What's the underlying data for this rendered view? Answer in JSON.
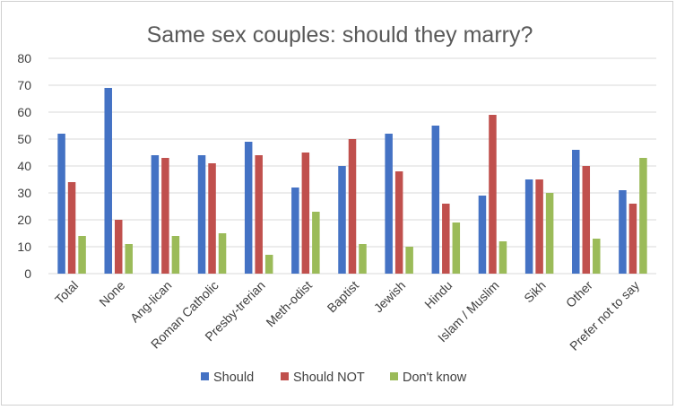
{
  "chart_data": {
    "type": "bar",
    "title": "Same sex couples: should they marry?",
    "xlabel": "",
    "ylabel": "",
    "ylim": [
      0,
      80
    ],
    "yticks": [
      0,
      10,
      20,
      30,
      40,
      50,
      60,
      70,
      80
    ],
    "grid": true,
    "legend_position": "bottom",
    "categories": [
      "Total",
      "None",
      "Ang-lican",
      "Roman Catholic",
      "Presby-trerian",
      "Meth-odist",
      "Baptist",
      "Jewish",
      "Hindu",
      "Islam / Muslim",
      "Sikh",
      "Other",
      "Prefer not to say"
    ],
    "series": [
      {
        "name": "Should",
        "color": "#4472c4",
        "values": [
          52,
          69,
          44,
          44,
          49,
          32,
          40,
          52,
          55,
          29,
          35,
          46,
          31
        ]
      },
      {
        "name": "Should NOT",
        "color": "#c0504d",
        "values": [
          34,
          20,
          43,
          41,
          44,
          45,
          50,
          38,
          26,
          59,
          35,
          40,
          26
        ]
      },
      {
        "name": "Don't know",
        "color": "#9bbb59",
        "values": [
          14,
          11,
          14,
          15,
          7,
          23,
          11,
          10,
          19,
          12,
          30,
          13,
          43
        ]
      }
    ]
  }
}
